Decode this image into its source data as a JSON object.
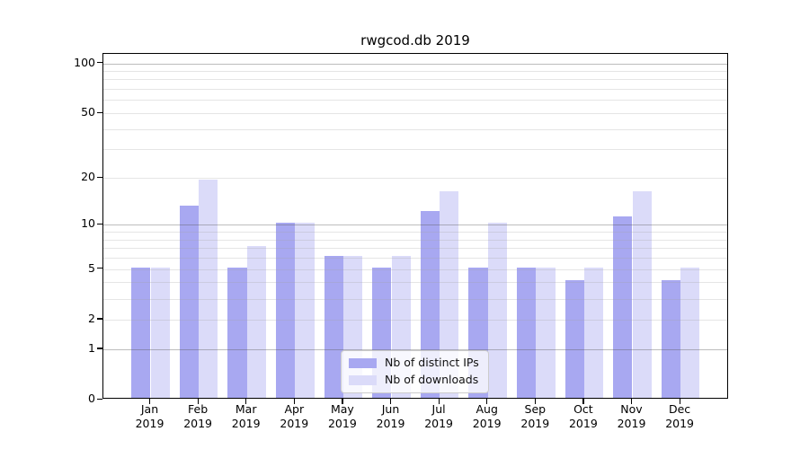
{
  "title": "rwgcod.db 2019",
  "chart_data": {
    "type": "bar",
    "categories": [
      "Jan",
      "Feb",
      "Mar",
      "Apr",
      "May",
      "Jun",
      "Jul",
      "Aug",
      "Sep",
      "Oct",
      "Nov",
      "Dec"
    ],
    "category_year": "2019",
    "series": [
      {
        "name": "Nb of distinct IPs",
        "color": "#a8a8f1",
        "values": [
          5,
          13,
          5,
          10,
          6,
          5,
          12,
          5,
          5,
          4,
          11,
          4
        ]
      },
      {
        "name": "Nb of downloads",
        "color": "#dbdbf9",
        "values": [
          5,
          19,
          7,
          10,
          6,
          6,
          16,
          10,
          5,
          5,
          16,
          5
        ]
      }
    ],
    "y_axis": {
      "scale": "log1p",
      "tick_values": [
        0,
        1,
        2,
        5,
        10,
        20,
        50,
        100
      ],
      "tick_labels": [
        "0",
        "1",
        "2",
        "5",
        "10",
        "20",
        "50",
        "100"
      ],
      "major_gridline_values": [
        1,
        10,
        100
      ],
      "minor_gridline_values": [
        2,
        3,
        4,
        5,
        6,
        7,
        8,
        9,
        20,
        30,
        40,
        50,
        60,
        70,
        80,
        90
      ],
      "top_value": 114
    },
    "legend": {
      "position": "lower center"
    },
    "colors": {
      "background": "#ffffff",
      "spine": "#000000"
    }
  }
}
